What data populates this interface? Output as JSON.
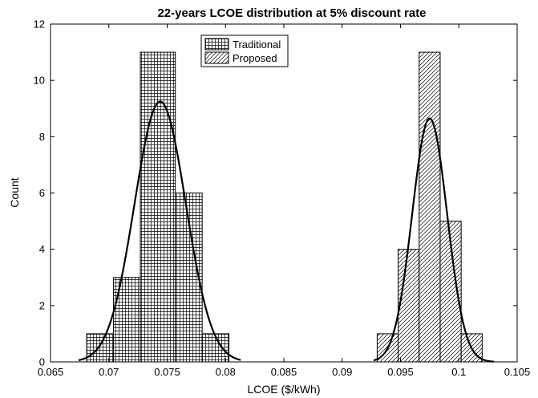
{
  "chart_data": {
    "type": "bar",
    "title": "22-years LCOE distribution at 5% discount rate",
    "xlabel": "LCOE ($/kWh)",
    "ylabel": "Count",
    "xlim": [
      0.065,
      0.105
    ],
    "ylim": [
      0,
      12
    ],
    "xticks": [
      0.065,
      0.07,
      0.075,
      0.08,
      0.085,
      0.09,
      0.095,
      0.1,
      0.105
    ],
    "xtick_labels": [
      "0.065",
      "0.07",
      "0.075",
      "0.08",
      "0.085",
      "0.09",
      "0.095",
      "0.1",
      "0.105"
    ],
    "yticks": [
      0,
      2,
      4,
      6,
      8,
      10,
      12
    ],
    "ytick_labels": [
      "0",
      "2",
      "4",
      "6",
      "8",
      "10",
      "12"
    ],
    "grid": false,
    "legend_position": "top-center",
    "series": [
      {
        "name": "Traditional",
        "pattern": "crosshatch",
        "bins": [
          {
            "x0": 0.0681,
            "x1": 0.0704,
            "count": 1
          },
          {
            "x0": 0.0704,
            "x1": 0.0727,
            "count": 3
          },
          {
            "x0": 0.0727,
            "x1": 0.0757,
            "count": 11
          },
          {
            "x0": 0.0757,
            "x1": 0.078,
            "count": 6
          },
          {
            "x0": 0.078,
            "x1": 0.0803,
            "count": 1
          }
        ],
        "fit": {
          "type": "normal",
          "mean": 0.0744,
          "sd": 0.0022,
          "peak": 9.25,
          "x_range": [
            0.0674,
            0.0813
          ]
        }
      },
      {
        "name": "Proposed",
        "pattern": "diagonal",
        "bins": [
          {
            "x0": 0.093,
            "x1": 0.0948,
            "count": 1
          },
          {
            "x0": 0.0948,
            "x1": 0.0966,
            "count": 4
          },
          {
            "x0": 0.0966,
            "x1": 0.0984,
            "count": 11
          },
          {
            "x0": 0.0984,
            "x1": 0.1002,
            "count": 5
          },
          {
            "x0": 0.1002,
            "x1": 0.102,
            "count": 1
          }
        ],
        "fit": {
          "type": "normal",
          "mean": 0.0975,
          "sd": 0.0015,
          "peak": 8.65,
          "x_range": [
            0.0927,
            0.103
          ]
        }
      }
    ]
  }
}
